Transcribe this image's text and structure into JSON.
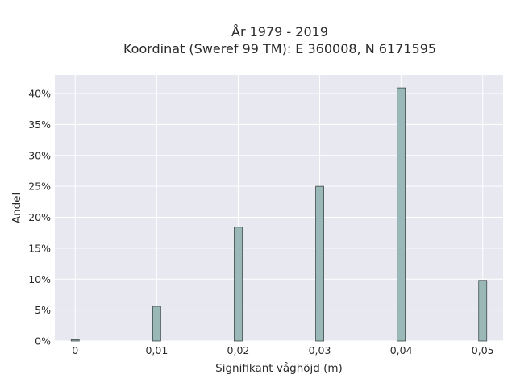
{
  "chart_data": {
    "type": "bar",
    "title_line1": "År 1979 - 2019",
    "title_line2": "Koordinat (Sweref 99 TM): E 360008, N 6171595",
    "xlabel": "Signifikant våghöjd (m)",
    "ylabel": "Andel",
    "x": [
      0,
      0.01,
      0.02,
      0.03,
      0.04,
      0.05
    ],
    "x_tick_labels": [
      "0",
      "0,01",
      "0,02",
      "0,03",
      "0,04",
      "0,05"
    ],
    "values": [
      0.2,
      5.6,
      18.4,
      25.0,
      40.9,
      9.8
    ],
    "y_ticks": [
      0,
      5,
      10,
      15,
      20,
      25,
      30,
      35,
      40
    ],
    "y_tick_labels": [
      "0%",
      "5%",
      "10%",
      "15%",
      "20%",
      "25%",
      "30%",
      "35%",
      "40%"
    ],
    "xlim": [
      -0.0025,
      0.0525
    ],
    "ylim": [
      0,
      43.0
    ],
    "grid": true,
    "colors": {
      "plot_background": "#e8e8f0",
      "bar_fill": "#9ab8b8",
      "bar_edge": "#3e4a4a"
    }
  }
}
